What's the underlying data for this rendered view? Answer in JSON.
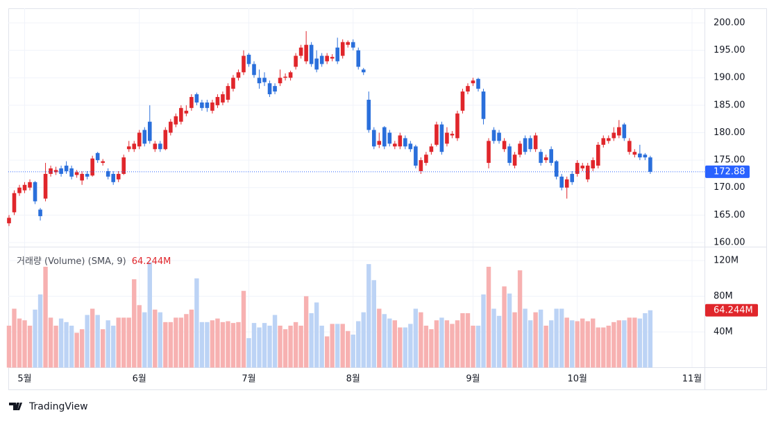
{
  "chart_data": [
    {
      "type": "candlestick",
      "open": [
        163.5,
        165.5,
        169,
        169.5,
        170,
        171,
        166,
        168,
        172.5,
        172.8,
        173.5,
        174,
        173.5,
        172.3,
        171.3,
        172.5,
        172.2,
        176.3,
        174.5,
        173,
        172.5,
        171.5,
        172.5,
        177,
        177,
        177.5,
        180.5,
        182,
        177,
        178,
        177,
        180,
        181.5,
        182,
        183.5,
        184.5,
        187,
        185.5,
        185.5,
        184,
        185,
        185.5,
        186,
        188,
        190,
        191,
        194.2,
        192.5,
        190,
        190,
        189,
        188.5,
        189,
        190,
        190,
        192,
        194,
        193,
        196,
        193.5,
        194,
        193,
        193.5,
        195.5,
        194,
        196,
        196.5,
        195,
        191.5,
        186,
        180.5,
        177.8,
        181,
        180,
        177.5,
        177.5,
        179,
        178,
        177.5,
        173,
        174.5,
        176.5,
        177.8,
        181.5,
        178,
        179.5,
        179,
        184,
        187.5,
        189,
        189.8,
        187.5,
        174.5,
        180.5,
        180,
        177,
        177.5,
        174,
        176,
        179,
        179,
        177,
        176.5,
        175,
        177,
        174.8,
        172,
        170,
        172.5,
        172.5,
        173.5,
        171.5,
        173.5,
        174,
        177.8,
        178.5,
        179,
        179.5,
        181.5,
        176.5,
        176,
        176.2,
        176,
        175.5
      ],
      "high": [
        165,
        169.5,
        170.5,
        171,
        171.5,
        171.2,
        166.3,
        174.5,
        174,
        173.8,
        174,
        174.8,
        174,
        173.2,
        173,
        173,
        175.8,
        176.5,
        175.2,
        173.5,
        173,
        173,
        176,
        178.5,
        178.5,
        180.5,
        181,
        185,
        178.5,
        178.5,
        181,
        182.5,
        183.5,
        185,
        185,
        187,
        187.3,
        186,
        186,
        186,
        187,
        187.5,
        189,
        190.5,
        191.5,
        195,
        194.5,
        193,
        191.5,
        191,
        189.5,
        189,
        191.5,
        190.8,
        191.3,
        194.5,
        196,
        198.5,
        196.5,
        195,
        194.5,
        194.5,
        194.3,
        197.3,
        197,
        196.8,
        197,
        195.5,
        191.8,
        187.5,
        181,
        180,
        181.2,
        180.5,
        178.5,
        180,
        179.5,
        178.5,
        177.8,
        175.5,
        176.5,
        178,
        182,
        182,
        181,
        180.3,
        184,
        188,
        189,
        190,
        190,
        188,
        179,
        181,
        180.5,
        179,
        178,
        176.5,
        178.5,
        179.5,
        179.5,
        180,
        177,
        176,
        177.5,
        175,
        172.5,
        172,
        173,
        175,
        174.5,
        174.5,
        175.5,
        178.3,
        179.5,
        179.5,
        181,
        182.3,
        181.8,
        179,
        177,
        177.8,
        176.3,
        175.8
      ],
      "low": [
        163,
        165,
        168.5,
        169,
        169.5,
        167,
        164,
        167.5,
        172,
        172.3,
        172,
        172.5,
        171.5,
        171.8,
        170.5,
        171.5,
        172,
        174.5,
        174,
        171.5,
        170.5,
        171,
        172.3,
        176.5,
        176.5,
        177,
        177.5,
        178,
        176.5,
        176.5,
        176.8,
        179.5,
        181,
        181.5,
        183,
        184,
        185,
        184,
        183.8,
        183.5,
        184.5,
        185,
        185.5,
        187.5,
        189.5,
        190.5,
        192,
        190,
        188,
        188.5,
        186.5,
        187,
        188.5,
        189.5,
        189.5,
        191.5,
        193.5,
        192.5,
        192,
        191,
        192,
        192.5,
        193,
        192.5,
        193.5,
        195.5,
        195,
        191.5,
        190.5,
        180,
        177,
        177.2,
        177,
        177.5,
        177,
        177,
        177,
        176.5,
        173.5,
        172.5,
        174,
        176,
        177.5,
        176,
        177.5,
        179,
        178.5,
        183.5,
        187,
        188.5,
        187.5,
        181.5,
        173.5,
        178,
        178,
        176.5,
        174,
        173.5,
        175.5,
        176,
        176.5,
        176.5,
        174,
        174.5,
        174,
        171.5,
        169.5,
        168,
        170.5,
        172,
        173,
        171,
        173,
        173.5,
        177.3,
        178,
        178.5,
        179,
        178.5,
        176,
        175.5,
        175,
        175,
        172.5
      ],
      "close": [
        164.5,
        169,
        170,
        170.5,
        171,
        167.5,
        164.8,
        172.5,
        173.5,
        173.2,
        172.5,
        173,
        172,
        172.8,
        172.5,
        172,
        175.3,
        175,
        174.8,
        172,
        171,
        172.5,
        175.5,
        177.5,
        178,
        180,
        178,
        178.5,
        178,
        177,
        180.5,
        182,
        183,
        184.5,
        184,
        186.5,
        185.5,
        184.5,
        184.5,
        185.5,
        186.5,
        187,
        188.5,
        190,
        191,
        194,
        192.5,
        190.5,
        189,
        189.2,
        187,
        187.5,
        190,
        190.2,
        191,
        194,
        195.5,
        196,
        192.5,
        191.5,
        192.5,
        194,
        193.8,
        193,
        196.5,
        196.5,
        195.5,
        192,
        191,
        180.5,
        177.5,
        178.5,
        177.5,
        178,
        178,
        179.5,
        177.5,
        177,
        174,
        175,
        176,
        177.5,
        181.5,
        176.5,
        180,
        179.8,
        183.5,
        187.5,
        188.5,
        189.5,
        188,
        182.5,
        178.5,
        178.5,
        178.5,
        178.5,
        174.5,
        176,
        178,
        176.5,
        177,
        179.5,
        174.5,
        175.5,
        174.5,
        172,
        170,
        171.5,
        171,
        174.5,
        174,
        174,
        175,
        177.8,
        179,
        179,
        180,
        181,
        179,
        178.5,
        176.5,
        175.5,
        175.5,
        172.88
      ],
      "up_color": "#e0262b",
      "down_color": "#2a6fdb",
      "price_line_color": "#2962ff",
      "xlim": [
        -0.13,
        133.4
      ],
      "xticks": [
        {
          "value": 3,
          "label": "5월"
        },
        {
          "value": 25,
          "label": "6월"
        },
        {
          "value": 46,
          "label": "7월"
        },
        {
          "value": 66,
          "label": "8월"
        },
        {
          "value": 89,
          "label": "9월"
        },
        {
          "value": 109,
          "label": "10월"
        },
        {
          "value": 131,
          "label": "11월"
        }
      ],
      "ylim": [
        159.24,
        202.65
      ],
      "yticks": [
        {
          "value": 160,
          "label": "160.00"
        },
        {
          "value": 165,
          "label": "165.00"
        },
        {
          "value": 170,
          "label": "170.00"
        },
        {
          "value": 175,
          "label": "175.00"
        },
        {
          "value": 180,
          "label": "180.00"
        },
        {
          "value": 185,
          "label": "185.00"
        },
        {
          "value": 190,
          "label": "190.00"
        },
        {
          "value": 195,
          "label": "195.00"
        },
        {
          "value": 200,
          "label": "200.00"
        }
      ],
      "grid": true
    },
    {
      "type": "volume",
      "title": "거래량 (Volume) (SMA, 9)",
      "values": [
        47,
        66,
        55,
        53,
        47,
        65,
        82,
        113,
        56,
        47,
        55,
        51,
        47,
        39,
        43,
        59,
        66,
        59,
        43,
        53,
        47,
        56,
        56,
        56,
        99,
        70,
        62,
        118,
        65,
        62,
        51,
        51,
        56,
        56,
        60,
        65,
        100,
        51,
        51,
        53,
        55,
        51,
        52,
        50,
        51,
        86,
        33,
        50,
        45,
        50,
        47,
        59,
        47,
        43,
        47,
        51,
        47,
        80,
        61,
        73,
        47,
        35,
        49,
        49,
        49,
        41,
        37,
        52,
        62,
        116,
        98,
        66,
        60,
        55,
        53,
        45,
        45,
        49,
        66,
        62,
        47,
        43,
        53,
        56,
        53,
        49,
        53,
        61,
        61,
        47,
        47,
        82,
        113,
        66,
        58,
        91,
        83,
        62,
        109,
        66,
        53,
        62,
        65,
        47,
        53,
        66,
        66,
        56,
        53,
        52,
        55,
        52,
        55,
        45,
        45,
        47,
        51,
        53,
        53,
        56,
        56,
        55,
        61,
        64.244
      ],
      "last_value_label": "64.244M",
      "up_color": "#f7b1b1",
      "down_color": "#bcd3f5",
      "label_color": "#e0262b",
      "ylim": [
        0,
        135.5
      ],
      "yticks": [
        {
          "value": 40,
          "label": "40M"
        },
        {
          "value": 80,
          "label": "80M"
        },
        {
          "value": 120,
          "label": "120M"
        }
      ],
      "grid": true
    }
  ],
  "brand": "TradingView"
}
